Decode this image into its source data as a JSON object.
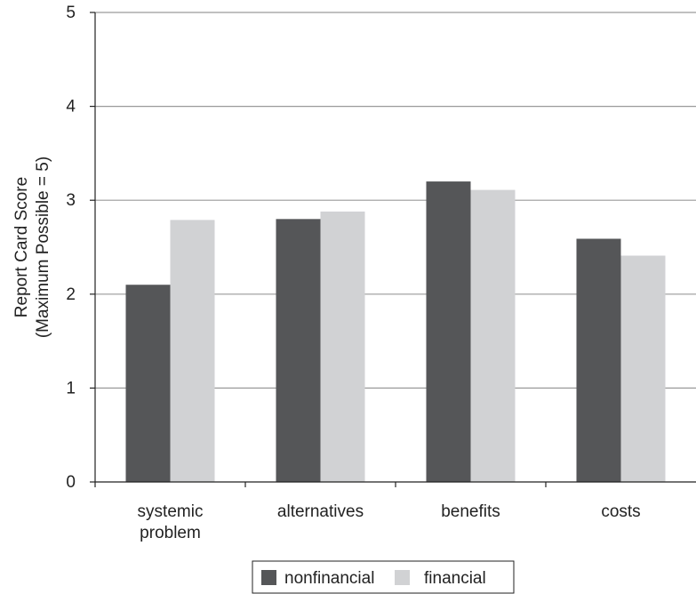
{
  "chart_data": {
    "type": "bar",
    "categories": [
      [
        "systemic",
        "problem"
      ],
      [
        "alternatives"
      ],
      [
        "benefits"
      ],
      [
        "costs"
      ]
    ],
    "series": [
      {
        "name": "nonfinancial",
        "values": [
          2.1,
          2.8,
          3.2,
          2.59
        ],
        "color": "#555658"
      },
      {
        "name": "financial",
        "values": [
          2.79,
          2.88,
          3.11,
          2.41
        ],
        "color": "#d1d2d4"
      }
    ],
    "ylabel": [
      "Report Card Score",
      "(Maximum Possible = 5)"
    ],
    "xlabel": "",
    "ylim": [
      0,
      5
    ],
    "yticks": [
      "0",
      "1",
      "2",
      "3",
      "4",
      "5"
    ],
    "grid": true,
    "legend": "bottom-center",
    "colors": {
      "grid": "#9a9a9a",
      "axis": "#222222"
    }
  }
}
